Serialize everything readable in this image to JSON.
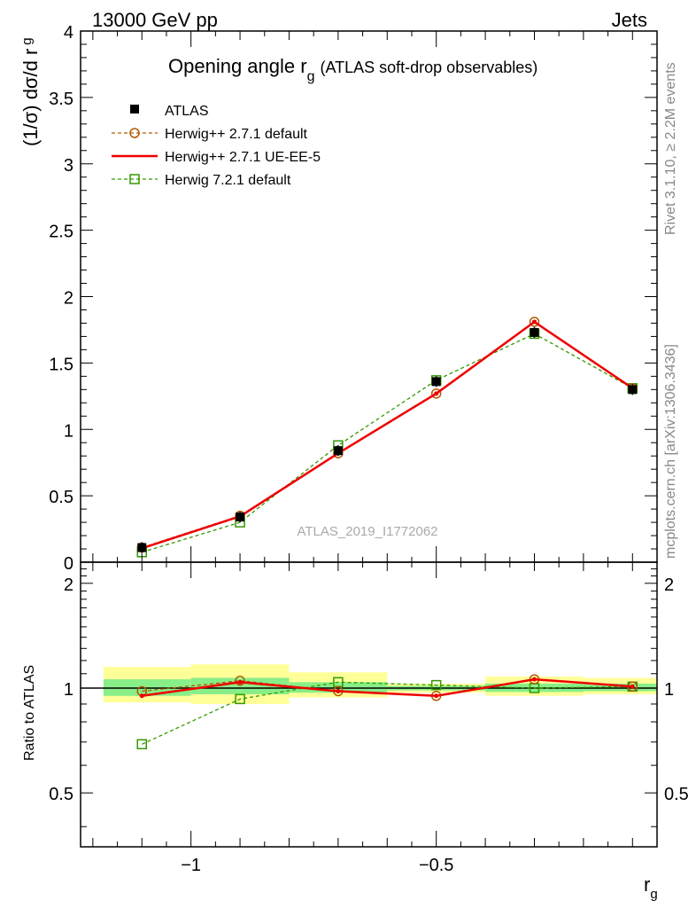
{
  "header": {
    "left": "13000 GeV pp",
    "right": "Jets"
  },
  "title": {
    "main": "Opening angle r",
    "sub": "g",
    "suffix": "(ATLAS soft-drop observables)"
  },
  "side_labels": {
    "rivet": "Rivet 3.1.10, ≥ 2.2M events",
    "mcplots": "mcplots.cern.ch [arXiv:1306.3436]"
  },
  "watermark": "ATLAS_2019_I1772062",
  "chart_data": [
    {
      "type": "line",
      "panel": "main",
      "ylabel": "(1/σ) dσ/d r",
      "ylabel_sub": "g",
      "ylim": [
        0,
        4
      ],
      "xlim": [
        -1.225,
        -0.05
      ],
      "yticks": [
        0,
        0.5,
        1,
        1.5,
        2,
        2.5,
        3,
        3.5,
        4
      ],
      "ytick_labels": [
        "0",
        "0.5",
        "1",
        "1.5",
        "2",
        "2.5",
        "3",
        "3.5",
        "4"
      ],
      "x": [
        -1.1,
        -0.9,
        -0.7,
        -0.5,
        -0.3,
        -0.1
      ],
      "series": [
        {
          "name": "ATLAS",
          "style": "data",
          "color": "#000000",
          "values": [
            0.11,
            0.34,
            0.84,
            1.36,
            1.73,
            1.3
          ]
        },
        {
          "name": "Herwig++ 2.7.1 default",
          "style": "dashed-circle",
          "color": "#b05a00",
          "values": [
            0.11,
            0.35,
            0.82,
            1.27,
            1.81,
            1.31
          ]
        },
        {
          "name": "Herwig++ 2.7.1 UE-EE-5",
          "style": "solid",
          "color": "#ee0000",
          "values": [
            0.105,
            0.345,
            0.82,
            1.27,
            1.81,
            1.31
          ]
        },
        {
          "name": "Herwig 7.2.1 default",
          "style": "dashed-square",
          "color": "#339900",
          "values": [
            0.075,
            0.3,
            0.88,
            1.37,
            1.72,
            1.31
          ]
        }
      ]
    },
    {
      "type": "line",
      "panel": "ratio",
      "ylabel": "Ratio to ATLAS",
      "xlabel": "r",
      "xlabel_sub": "g",
      "xlim": [
        -1.225,
        -0.05
      ],
      "xticks": [
        -1,
        -0.5
      ],
      "xtick_labels": [
        "−1",
        "−0.5"
      ],
      "yticks": [
        0.5,
        1,
        2
      ],
      "ytick_labels": [
        "0.5",
        "1",
        "2"
      ],
      "ylim": [
        0.35,
        2.3
      ],
      "bands": [
        {
          "xmin": -1.2,
          "xmax": -1.0,
          "green": [
            0.95,
            1.06
          ],
          "yellow": [
            0.91,
            1.15
          ]
        },
        {
          "xmin": -1.0,
          "xmax": -0.8,
          "green": [
            0.96,
            1.07
          ],
          "yellow": [
            0.9,
            1.17
          ]
        },
        {
          "xmin": -0.8,
          "xmax": -0.6,
          "green": [
            0.97,
            1.04
          ],
          "yellow": [
            0.94,
            1.11
          ]
        },
        {
          "xmin": -0.6,
          "xmax": -0.4,
          "green": [
            0.985,
            1.015
          ],
          "yellow": [
            0.97,
            1.03
          ]
        },
        {
          "xmin": -0.4,
          "xmax": -0.2,
          "green": [
            0.975,
            1.03
          ],
          "yellow": [
            0.95,
            1.08
          ]
        },
        {
          "xmin": -0.2,
          "xmax": -0.05,
          "green": [
            0.98,
            1.03
          ],
          "yellow": [
            0.96,
            1.07
          ]
        }
      ],
      "x": [
        -1.1,
        -0.9,
        -0.7,
        -0.5,
        -0.3,
        -0.1
      ],
      "series": [
        {
          "name": "Herwig++ 2.7.1 default",
          "style": "dashed-circle",
          "color": "#b05a00",
          "values": [
            0.98,
            1.05,
            0.98,
            0.95,
            1.06,
            1.01
          ]
        },
        {
          "name": "Herwig++ 2.7.1 UE-EE-5",
          "style": "solid",
          "color": "#ee0000",
          "values": [
            0.95,
            1.04,
            0.98,
            0.95,
            1.06,
            1.01
          ]
        },
        {
          "name": "Herwig 7.2.1 default",
          "style": "dashed-square",
          "color": "#339900",
          "values": [
            0.69,
            0.93,
            1.04,
            1.02,
            1.0,
            1.01
          ]
        }
      ]
    }
  ]
}
